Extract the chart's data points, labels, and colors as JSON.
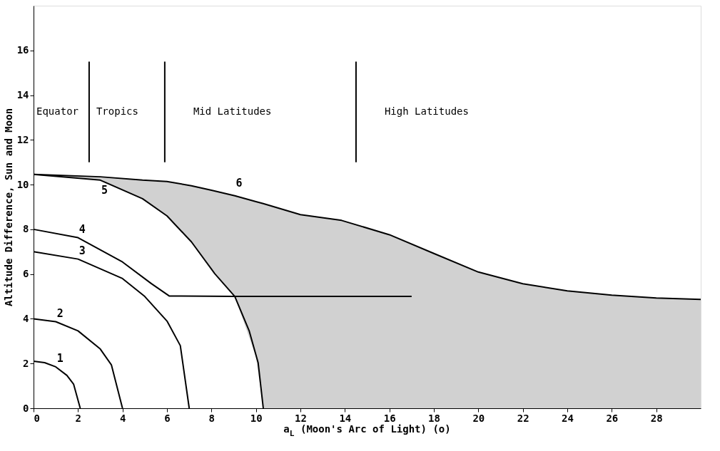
{
  "chart_data": {
    "type": "line",
    "xlabel": "a$_{L}$ (Moon's Arc of Light) (o)",
    "ylabel": "Altitude Difference, Sun and Moon",
    "xlim": [
      0,
      30
    ],
    "ylim": [
      0,
      18
    ],
    "xticks": [
      0,
      2,
      4,
      6,
      8,
      10,
      12,
      14,
      16,
      18,
      20,
      22,
      24,
      26,
      28
    ],
    "yticks": [
      0,
      2,
      4,
      6,
      8,
      10,
      12,
      14,
      16
    ],
    "grid": false,
    "marker": "none",
    "line_style": "solid",
    "series": [
      {
        "name": "1",
        "color": "#000000",
        "x": [
          0,
          0.5,
          1,
          1.5,
          1.8,
          2.1
        ],
        "values": [
          2.1,
          2.04,
          1.85,
          1.47,
          1.08,
          0
        ]
      },
      {
        "name": "2",
        "color": "#000000",
        "x": [
          0,
          1,
          2,
          3,
          3.5,
          4
        ],
        "values": [
          4,
          3.87,
          3.46,
          2.65,
          1.94,
          0
        ]
      },
      {
        "name": "3",
        "color": "#000000",
        "x": [
          0,
          2,
          4,
          5,
          6,
          6.6,
          7
        ],
        "values": [
          7,
          6.67,
          5.8,
          5.0,
          3.9,
          2.8,
          0
        ]
      },
      {
        "name": "4",
        "color": "#000000",
        "x": [
          0,
          2,
          4,
          5.3,
          6.1,
          9,
          17
        ],
        "values": [
          8,
          7.63,
          6.54,
          5.57,
          5.02,
          5.0,
          5.0
        ]
      },
      {
        "name": "5",
        "color": "#000000",
        "x": [
          0,
          3,
          4.9,
          6,
          7.1,
          8.15,
          9.05,
          9.7,
          10.1,
          10.33
        ],
        "values": [
          10.46,
          10.2,
          9.37,
          8.6,
          7.44,
          6.02,
          5.0,
          3.45,
          2.03,
          0
        ]
      },
      {
        "name": "6",
        "color": "#000000",
        "x": [
          0,
          3,
          4.9,
          6,
          7.1,
          8,
          9.05,
          10,
          10.33,
          12,
          13.85,
          16,
          18,
          20,
          22,
          24,
          26,
          28,
          30
        ],
        "values": [
          10.46,
          10.35,
          10.2,
          10.14,
          9.95,
          9.75,
          9.5,
          9.24,
          9.15,
          8.66,
          8.4,
          7.76,
          6.92,
          6.09,
          5.57,
          5.25,
          5.06,
          4.93,
          4.87
        ],
        "lower": [
          10.46,
          10.2,
          9.37,
          8.6,
          7.44,
          6.25,
          5.0,
          2.3,
          0,
          0,
          0,
          0,
          0,
          0,
          0,
          0,
          0,
          0,
          0
        ],
        "upper": [
          10.46,
          10.35,
          10.2,
          10.14,
          9.95,
          9.75,
          9.5,
          9.24,
          9.15,
          8.66,
          8.4,
          7.76,
          6.92,
          6.09,
          5.57,
          5.25,
          5.06,
          4.93,
          4.87
        ]
      },
      {
        "color": "#000000",
        "x": [
          2.5,
          2.5
        ],
        "values": [
          11,
          15.5
        ]
      },
      {
        "color": "#000000",
        "x": [
          5.9,
          5.9
        ],
        "values": [
          11,
          15.5
        ]
      },
      {
        "color": "#000000",
        "x": [
          14.5,
          14.5
        ],
        "values": [
          11,
          15.5
        ]
      }
    ],
    "annotations": [
      "Equator",
      "Tropics",
      "Mid Latitudes",
      "High Latitudes"
    ]
  }
}
